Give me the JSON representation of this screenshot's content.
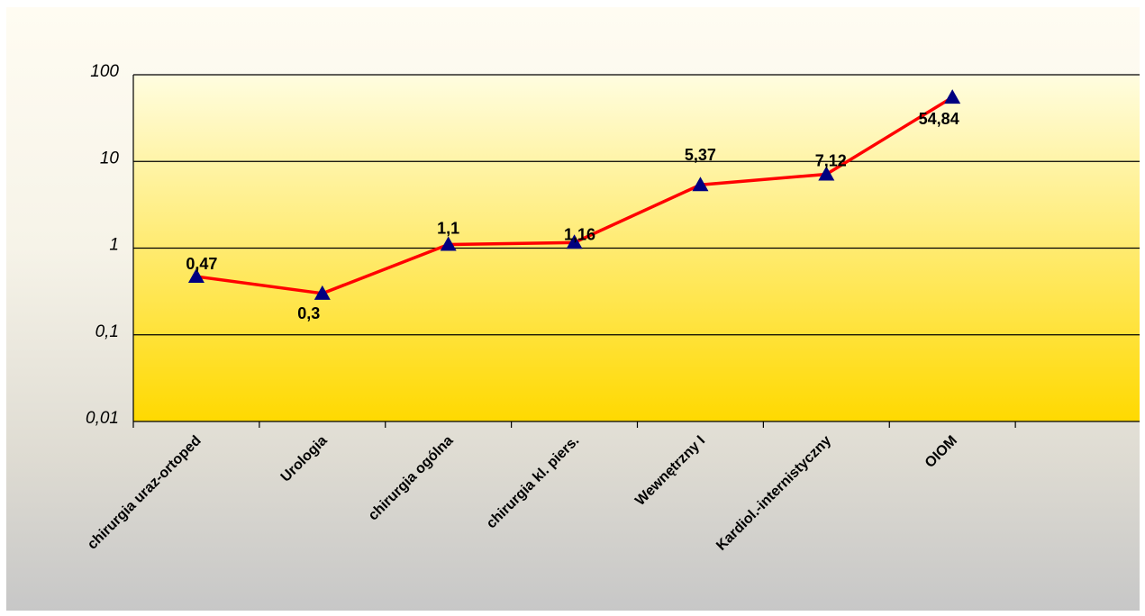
{
  "chart_data": {
    "type": "line",
    "y_scale": "log",
    "ylim": [
      0.01,
      100
    ],
    "y_ticks": [
      {
        "value": 0.01,
        "label": "0,01"
      },
      {
        "value": 0.1,
        "label": "0,1"
      },
      {
        "value": 1,
        "label": "1"
      },
      {
        "value": 10,
        "label": "10"
      },
      {
        "value": 100,
        "label": "100"
      }
    ],
    "grid": true,
    "legend": "none",
    "category_slots": 8,
    "categories": [
      "chirurgia uraz-ortoped",
      "Urologia",
      "chirurgia ogólna",
      "chirurgia kl. piers.",
      "Wewnętrzny I",
      "Kardiol.-internistyczny",
      "OIOM"
    ],
    "series": [
      {
        "values": [
          0.47,
          0.3,
          1.1,
          1.16,
          5.37,
          7.12,
          54.84
        ],
        "labels": [
          "0,47",
          "0,3",
          "1,1",
          "1,16",
          "5,37",
          "7,12",
          "54,84"
        ],
        "line_color": "#ff0000",
        "marker": "triangle",
        "marker_color": "#000080"
      }
    ],
    "plot_gradient": [
      "#fffde0",
      "#ffd900"
    ]
  }
}
